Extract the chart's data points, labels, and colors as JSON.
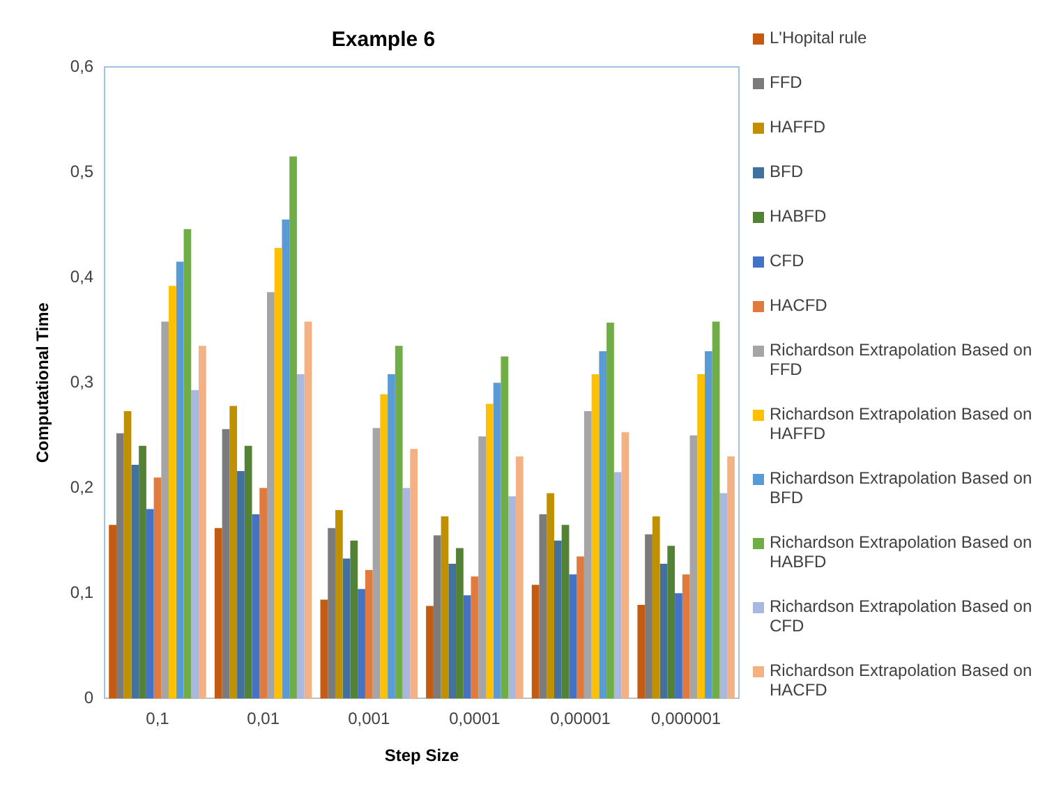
{
  "chart_data": {
    "type": "bar",
    "title": "Example 6",
    "xlabel": "Step Size",
    "ylabel": "Computational Time",
    "categories": [
      "0,1",
      "0,01",
      "0,001",
      "0,0001",
      "0,00001",
      "0,000001"
    ],
    "ylim": [
      0,
      0.6
    ],
    "yticks": [
      0,
      {
        "value": 0.1,
        "label": "0,1"
      },
      {
        "value": 0.2,
        "label": "0,2"
      },
      {
        "value": 0.3,
        "label": "0,3"
      },
      {
        "value": 0.4,
        "label": "0,4"
      },
      {
        "value": 0.5,
        "label": "0,5"
      },
      {
        "value": 0.6,
        "label": "0,6"
      }
    ],
    "grid": false,
    "legend": "right",
    "series": [
      {
        "name": "L'Hopital rule",
        "color": "#c55a11",
        "values": [
          0.165,
          0.162,
          0.094,
          0.088,
          0.108,
          0.089
        ]
      },
      {
        "name": "FFD",
        "color": "#7b7b7b",
        "values": [
          0.252,
          0.256,
          0.162,
          0.155,
          0.175,
          0.156
        ]
      },
      {
        "name": "HAFFD",
        "color": "#bf9000",
        "values": [
          0.273,
          0.278,
          0.179,
          0.173,
          0.195,
          0.173
        ]
      },
      {
        "name": "BFD",
        "color": "#41719c",
        "values": [
          0.222,
          0.216,
          0.133,
          0.128,
          0.15,
          0.128
        ]
      },
      {
        "name": "HABFD",
        "color": "#538135",
        "values": [
          0.24,
          0.24,
          0.15,
          0.143,
          0.165,
          0.145
        ]
      },
      {
        "name": "CFD",
        "color": "#4472c4",
        "values": [
          0.18,
          0.175,
          0.104,
          0.098,
          0.118,
          0.1
        ]
      },
      {
        "name": "HACFD",
        "color": "#e07a3f",
        "values": [
          0.21,
          0.2,
          0.122,
          0.116,
          0.135,
          0.118
        ]
      },
      {
        "name": "Richardson Extrapolation Based on FFD",
        "color": "#a5a5a5",
        "values": [
          0.358,
          0.386,
          0.257,
          0.249,
          0.273,
          0.25
        ]
      },
      {
        "name": "Richardson Extrapolation Based on HAFFD",
        "color": "#ffc000",
        "values": [
          0.392,
          0.428,
          0.289,
          0.28,
          0.308,
          0.308
        ]
      },
      {
        "name": "Richardson Extrapolation Based on BFD",
        "color": "#5b9bd5",
        "values": [
          0.415,
          0.455,
          0.308,
          0.3,
          0.33,
          0.33
        ]
      },
      {
        "name": "Richardson Extrapolation Based on HABFD",
        "color": "#70ad47",
        "values": [
          0.446,
          0.515,
          0.335,
          0.325,
          0.357,
          0.358
        ]
      },
      {
        "name": "Richardson Extrapolation Based on CFD",
        "color": "#a9b8dc",
        "values": [
          0.293,
          0.308,
          0.2,
          0.192,
          0.215,
          0.195
        ]
      },
      {
        "name": "Richardson Extrapolation Based on HACFD",
        "color": "#f4b183",
        "values": [
          0.335,
          0.358,
          0.237,
          0.23,
          0.253,
          0.23
        ]
      }
    ]
  }
}
